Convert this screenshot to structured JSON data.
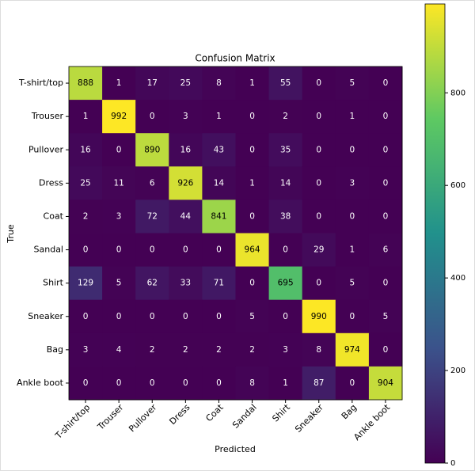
{
  "chart_data": {
    "type": "heatmap",
    "title": "Confusion Matrix",
    "xlabel": "Predicted",
    "ylabel": "True",
    "x_categories": [
      "T-shirt/top",
      "Trouser",
      "Pullover",
      "Dress",
      "Coat",
      "Sandal",
      "Shirt",
      "Sneaker",
      "Bag",
      "Ankle boot"
    ],
    "y_categories": [
      "T-shirt/top",
      "Trouser",
      "Pullover",
      "Dress",
      "Coat",
      "Sandal",
      "Shirt",
      "Sneaker",
      "Bag",
      "Ankle boot"
    ],
    "values": [
      [
        888,
        1,
        17,
        25,
        8,
        1,
        55,
        0,
        5,
        0
      ],
      [
        1,
        992,
        0,
        3,
        1,
        0,
        2,
        0,
        1,
        0
      ],
      [
        16,
        0,
        890,
        16,
        43,
        0,
        35,
        0,
        0,
        0
      ],
      [
        25,
        11,
        6,
        926,
        14,
        1,
        14,
        0,
        3,
        0
      ],
      [
        2,
        3,
        72,
        44,
        841,
        0,
        38,
        0,
        0,
        0
      ],
      [
        0,
        0,
        0,
        0,
        0,
        964,
        0,
        29,
        1,
        6
      ],
      [
        129,
        5,
        62,
        33,
        71,
        0,
        695,
        0,
        5,
        0
      ],
      [
        0,
        0,
        0,
        0,
        0,
        5,
        0,
        990,
        0,
        5
      ],
      [
        3,
        4,
        2,
        2,
        2,
        2,
        3,
        8,
        974,
        0
      ],
      [
        0,
        0,
        0,
        0,
        0,
        8,
        1,
        87,
        0,
        904
      ]
    ],
    "zlim": [
      0,
      992
    ],
    "zticks": [
      0,
      200,
      400,
      600,
      800
    ],
    "colormap": "viridis"
  }
}
